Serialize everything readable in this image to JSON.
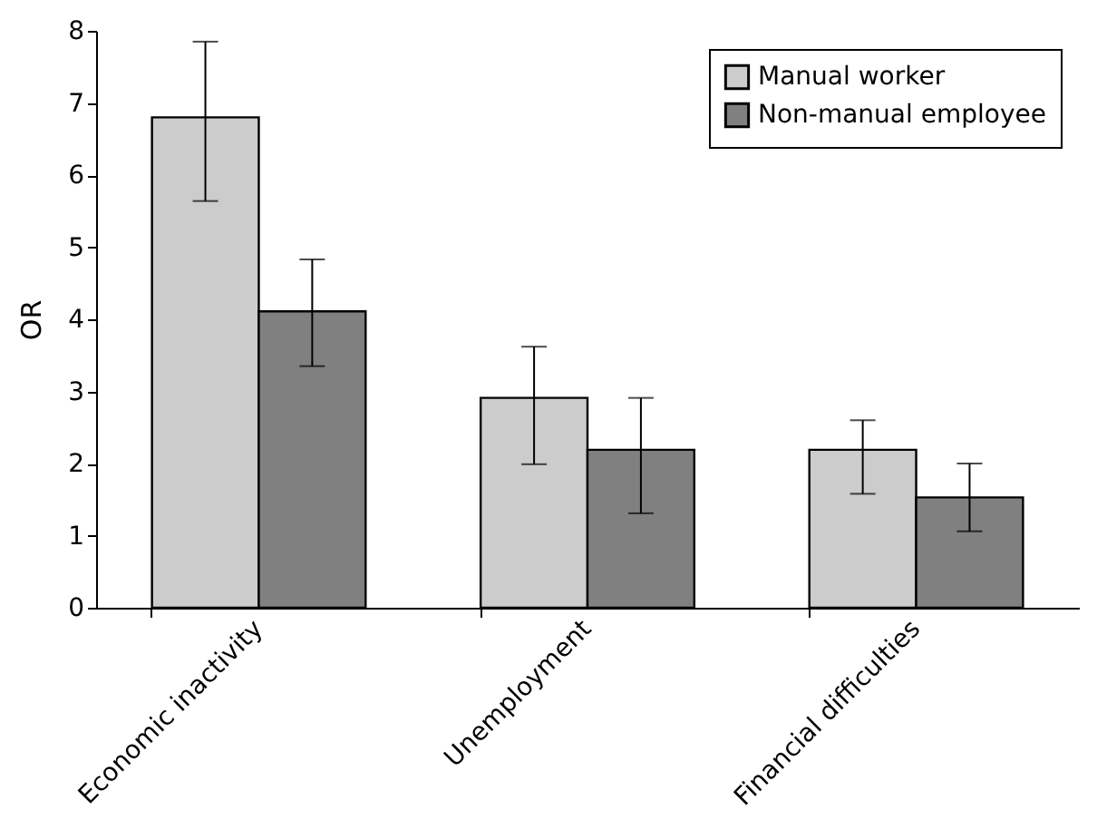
{
  "chart_data": {
    "type": "bar",
    "ylabel": "OR",
    "categories": [
      "Economic inactivity",
      "Unemployment",
      "Financial difficulties"
    ],
    "series": [
      {
        "name": "Manual worker",
        "color": "#cccccc",
        "values": [
          6.8,
          2.91,
          2.19
        ],
        "errors": [
          [
            5.64,
            7.85
          ],
          [
            1.99,
            3.62
          ],
          [
            1.58,
            2.6
          ]
        ]
      },
      {
        "name": "Non-manual employee",
        "color": "#808080",
        "values": [
          4.11,
          2.19,
          1.53
        ],
        "errors": [
          [
            3.35,
            4.83
          ],
          [
            1.31,
            2.91
          ],
          [
            1.06,
            2.0
          ]
        ]
      }
    ],
    "ylim": [
      0,
      8
    ],
    "yticks": [
      0,
      1,
      2,
      3,
      4,
      5,
      6,
      7,
      8
    ],
    "grid": false,
    "legend": "top right"
  }
}
